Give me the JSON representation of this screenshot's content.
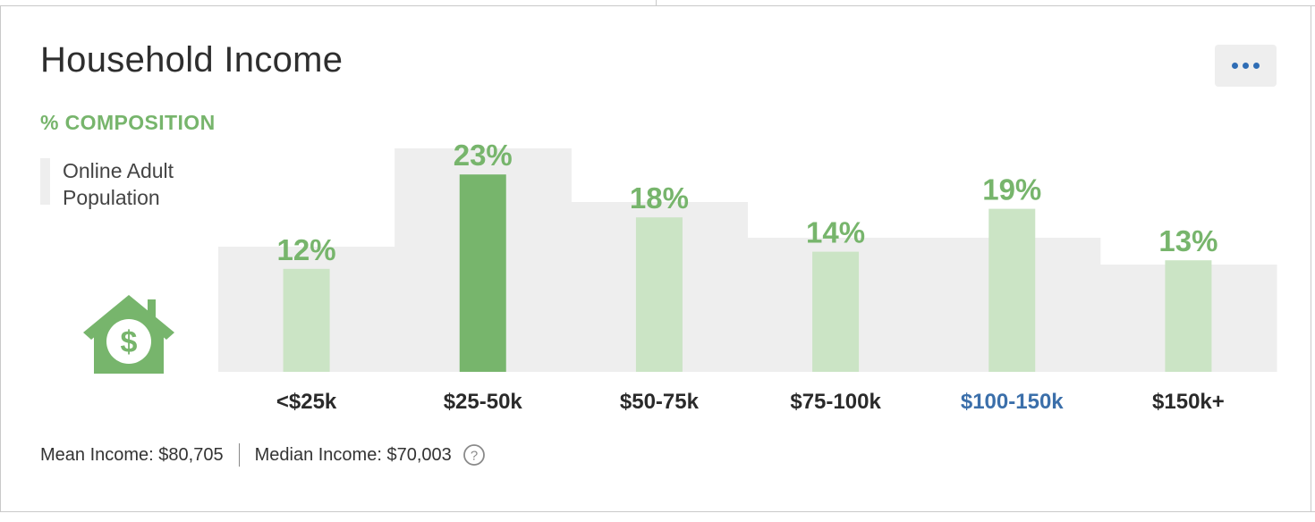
{
  "card": {
    "title": "Household Income",
    "subtitle": "% COMPOSITION"
  },
  "legend": {
    "label": "Online Adult Population"
  },
  "footer": {
    "mean": "Mean Income: $80,705",
    "median": "Median Income: $70,003"
  },
  "colors": {
    "accent_green": "#77b56c",
    "light_green": "#cbe4c5",
    "baseline_gray": "#eeeeee",
    "highlight_blue": "#3b6faa",
    "label_dark": "#2a2a2a"
  },
  "icons": {
    "menu": "more-horizontal-icon",
    "house": "house-dollar-icon",
    "help": "question-circle-icon"
  },
  "chart_data": {
    "type": "bar",
    "categories": [
      "<$25k",
      "$25-50k",
      "$50-75k",
      "$75-100k",
      "$100-150k",
      "$150k+"
    ],
    "series": [
      {
        "name": "",
        "values": [
          12,
          23,
          18,
          14,
          19,
          13
        ]
      },
      {
        "name": "Online Adult Population",
        "values": [
          14,
          25,
          19,
          15,
          15,
          12
        ]
      }
    ],
    "value_labels": [
      "12%",
      "23%",
      "18%",
      "14%",
      "19%",
      "13%"
    ],
    "highlighted_bar": "$25-50k",
    "highlighted_category_label": "$100-150k",
    "ylim": [
      0,
      25
    ],
    "grid": false,
    "legend_position": "left"
  }
}
